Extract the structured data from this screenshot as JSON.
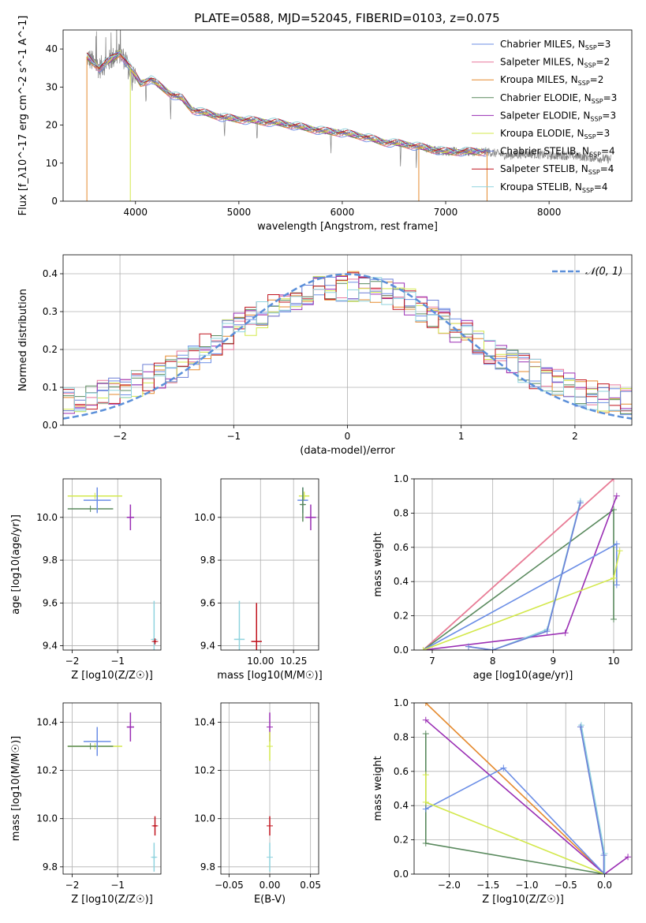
{
  "figure_title": "PLATE=0588, MJD=52045, FIBERID=0103, z=0.075",
  "colors": {
    "Chabrier MILES": "#6b8ee6",
    "Salpeter MILES": "#e8799e",
    "Kroupa MILES": "#e58a2e",
    "Chabrier ELODIE": "#5a8a5e",
    "Salpeter ELODIE": "#9a2eb4",
    "Kroupa ELODIE": "#d3e84c",
    "Chabrier STELIB": "#6b7ed6",
    "Salpeter STELIB": "#c0141e",
    "Kroupa STELIB": "#8fd3de",
    "data": "#808080",
    "normal": "#5b8fd9"
  },
  "chart_data": [
    {
      "id": "spectrum",
      "type": "line",
      "xlabel": "wavelength [Angstrom, rest frame]",
      "ylabel": "Flux [f_λ10^-17 erg cm^-2 s^-1 A^-1]",
      "xlim": [
        3300,
        8800
      ],
      "ylim": [
        0,
        45
      ],
      "xticks": [
        4000,
        5000,
        6000,
        7000,
        8000
      ],
      "yticks": [
        0,
        10,
        20,
        30,
        40
      ],
      "grid": false,
      "legend_position": "upper right",
      "legend": [
        {
          "name": "Chabrier MILES",
          "nssp": "3"
        },
        {
          "name": "Salpeter MILES",
          "nssp": "2"
        },
        {
          "name": "Kroupa MILES",
          "nssp": "2"
        },
        {
          "name": "Chabrier ELODIE",
          "nssp": "3"
        },
        {
          "name": "Salpeter ELODIE",
          "nssp": "3"
        },
        {
          "name": "Kroupa ELODIE",
          "nssp": "3"
        },
        {
          "name": "Chabrier STELIB",
          "nssp": "4"
        },
        {
          "name": "Salpeter STELIB",
          "nssp": "4"
        },
        {
          "name": "Kroupa STELIB",
          "nssp": "4"
        }
      ],
      "data_continuum": [
        [
          3530,
          38
        ],
        [
          3650,
          35
        ],
        [
          3750,
          37
        ],
        [
          3850,
          39
        ],
        [
          3950,
          35
        ],
        [
          4050,
          31
        ],
        [
          4150,
          32
        ],
        [
          4250,
          30
        ],
        [
          4350,
          28
        ],
        [
          4450,
          27
        ],
        [
          4550,
          24
        ],
        [
          4700,
          23
        ],
        [
          4850,
          22
        ],
        [
          5000,
          21.5
        ],
        [
          5200,
          21
        ],
        [
          5400,
          20.5
        ],
        [
          5600,
          19.5
        ],
        [
          5800,
          18.5
        ],
        [
          6000,
          18
        ],
        [
          6200,
          17
        ],
        [
          6400,
          15.5
        ],
        [
          6600,
          15
        ],
        [
          6800,
          14
        ],
        [
          7000,
          13
        ],
        [
          7200,
          13
        ],
        [
          7400,
          13
        ],
        [
          7600,
          12
        ],
        [
          7800,
          12.5
        ],
        [
          8000,
          12
        ],
        [
          8200,
          12
        ],
        [
          8400,
          11.5
        ],
        [
          8600,
          11
        ]
      ],
      "model_range": [
        3530,
        7400
      ]
    },
    {
      "id": "residuals",
      "type": "histogram",
      "xlabel": "(data-model)/error",
      "ylabel": "Normed distribution",
      "xlim": [
        -2.5,
        2.5
      ],
      "ylim": [
        0,
        0.45
      ],
      "xticks": [
        -2,
        -1,
        0,
        1,
        2
      ],
      "yticks": [
        0.0,
        0.1,
        0.2,
        0.3,
        0.4
      ],
      "grid": true,
      "legend_position": "upper right",
      "normal_label": "𝒩(0, 1)",
      "bin_width": 0.1
    },
    {
      "id": "age_vs_Z",
      "type": "scatter",
      "xlabel": "Z [log10(Z/Z☉)]",
      "ylabel": "age [log10(age/yr)]",
      "xlim": [
        -2.2,
        -0.05
      ],
      "ylim": [
        9.38,
        10.18
      ],
      "xticks": [
        -2,
        -1
      ],
      "yticks": [
        9.4,
        9.6,
        9.8,
        10.0
      ],
      "grid": true,
      "points": [
        {
          "model": "Kroupa ELODIE",
          "x": -1.5,
          "y": 10.1,
          "xerr": 0.6,
          "yerr": 0
        },
        {
          "model": "Chabrier ELODIE",
          "x": -1.6,
          "y": 10.04,
          "xerr": 0.5,
          "yerr": 0
        },
        {
          "model": "Chabrier MILES",
          "x": -1.45,
          "y": 10.08,
          "xerr": 0.3,
          "yerr": 0.06
        },
        {
          "model": "Salpeter ELODIE",
          "x": -0.72,
          "y": 10.0,
          "xerr": 0.08,
          "yerr": 0.06
        },
        {
          "model": "Kroupa STELIB",
          "x": -0.2,
          "y": 9.43,
          "xerr": 0.03,
          "yerr": 0.18
        },
        {
          "model": "Salpeter STELIB",
          "x": -0.18,
          "y": 9.42,
          "xerr": 0.03,
          "yerr": 0.01
        }
      ]
    },
    {
      "id": "age_vs_mass",
      "type": "scatter",
      "xlabel": "mass [log10(M/M☉)]",
      "ylabel": "",
      "xlim": [
        9.7,
        10.44
      ],
      "ylim": [
        9.38,
        10.18
      ],
      "xticks": [
        10.0,
        10.25
      ],
      "xticklabels": [
        "10.00",
        "10.25"
      ],
      "yticks": [
        9.4,
        9.6,
        9.8,
        10.0
      ],
      "grid": true,
      "points": [
        {
          "model": "Kroupa ELODIE",
          "x": 10.33,
          "y": 10.1,
          "xerr": 0.04,
          "yerr": 0.02
        },
        {
          "model": "Chabrier MILES",
          "x": 10.32,
          "y": 10.08,
          "xerr": 0.04,
          "yerr": 0.06
        },
        {
          "model": "Chabrier ELODIE",
          "x": 10.32,
          "y": 10.06,
          "xerr": 0.02,
          "yerr": 0.08
        },
        {
          "model": "Salpeter ELODIE",
          "x": 10.38,
          "y": 10.0,
          "xerr": 0.04,
          "yerr": 0.06
        },
        {
          "model": "Kroupa STELIB",
          "x": 9.84,
          "y": 9.43,
          "xerr": 0.04,
          "yerr": 0.18
        },
        {
          "model": "Salpeter STELIB",
          "x": 9.97,
          "y": 9.42,
          "xerr": 0.04,
          "yerr": 0.18
        }
      ]
    },
    {
      "id": "massweight_vs_age",
      "type": "line",
      "xlabel": "age [log10(age/yr)]",
      "ylabel": "mass weight",
      "xlim": [
        6.7,
        10.3
      ],
      "ylim": [
        0,
        1.0
      ],
      "xticks": [
        7,
        8,
        9,
        10
      ],
      "yticks": [
        0.0,
        0.2,
        0.4,
        0.6,
        0.8,
        1.0
      ],
      "grid": true,
      "series": [
        {
          "model": "Kroupa MILES",
          "points": [
            [
              6.85,
              0
            ],
            [
              10.0,
              1.0
            ]
          ]
        },
        {
          "model": "Salpeter MILES",
          "points": [
            [
              6.85,
              0
            ],
            [
              10.0,
              1.0
            ]
          ]
        },
        {
          "model": "Chabrier ELODIE",
          "points": [
            [
              6.85,
              0
            ],
            [
              10.0,
              0.82
            ],
            [
              10.0,
              0.18
            ]
          ]
        },
        {
          "model": "Salpeter ELODIE",
          "points": [
            [
              6.85,
              0
            ],
            [
              9.2,
              0.1
            ],
            [
              10.05,
              0.9
            ]
          ]
        },
        {
          "model": "Chabrier MILES",
          "points": [
            [
              6.85,
              0
            ],
            [
              10.05,
              0.62
            ],
            [
              10.05,
              0.38
            ]
          ]
        },
        {
          "model": "Kroupa ELODIE",
          "points": [
            [
              6.85,
              0
            ],
            [
              10.0,
              0.42
            ],
            [
              10.1,
              0.58
            ]
          ]
        },
        {
          "model": "Kroupa STELIB",
          "points": [
            [
              7.6,
              0.02
            ],
            [
              8.0,
              0
            ],
            [
              8.9,
              0.12
            ],
            [
              9.45,
              0.87
            ]
          ]
        },
        {
          "model": "Chabrier STELIB",
          "points": [
            [
              7.6,
              0.02
            ],
            [
              8.0,
              0
            ],
            [
              8.9,
              0.11
            ],
            [
              9.45,
              0.86
            ]
          ]
        }
      ]
    },
    {
      "id": "mass_vs_Z",
      "type": "scatter",
      "xlabel": "Z [log10(Z/Z☉)]",
      "ylabel": "mass [log10(M/M☉)]",
      "xlim": [
        -2.2,
        -0.05
      ],
      "ylim": [
        9.77,
        10.48
      ],
      "xticks": [
        -2,
        -1
      ],
      "yticks": [
        9.8,
        10.0,
        10.2,
        10.4
      ],
      "grid": true,
      "points": [
        {
          "model": "Kroupa ELODIE",
          "x": -1.5,
          "y": 10.3,
          "xerr": 0.6,
          "yerr": 0
        },
        {
          "model": "Chabrier ELODIE",
          "x": -1.6,
          "y": 10.3,
          "xerr": 0.5,
          "yerr": 0
        },
        {
          "model": "Chabrier MILES",
          "x": -1.45,
          "y": 10.32,
          "xerr": 0.3,
          "yerr": 0.06
        },
        {
          "model": "Salpeter ELODIE",
          "x": -0.72,
          "y": 10.38,
          "xerr": 0.08,
          "yerr": 0.06
        },
        {
          "model": "Salpeter STELIB",
          "x": -0.18,
          "y": 9.97,
          "xerr": 0.04,
          "yerr": 0.04
        },
        {
          "model": "Kroupa STELIB",
          "x": -0.2,
          "y": 9.84,
          "xerr": 0.04,
          "yerr": 0.06
        }
      ]
    },
    {
      "id": "mass_vs_ebv",
      "type": "scatter",
      "xlabel": "E(B-V)",
      "ylabel": "",
      "xlim": [
        -0.06,
        0.06
      ],
      "ylim": [
        9.77,
        10.48
      ],
      "xticks": [
        -0.05,
        0.0,
        0.05
      ],
      "xticklabels": [
        "−0.05",
        "0.00",
        "0.05"
      ],
      "yticks": [
        9.8,
        10.0,
        10.2,
        10.4
      ],
      "grid": true,
      "points": [
        {
          "model": "Salpeter ELODIE",
          "x": 0,
          "y": 10.38,
          "xerr": 0,
          "yerr": 0.06
        },
        {
          "model": "Kroupa ELODIE",
          "x": 0,
          "y": 10.3,
          "xerr": 0,
          "yerr": 0.06
        },
        {
          "model": "Salpeter STELIB",
          "x": 0,
          "y": 9.97,
          "xerr": 0,
          "yerr": 0.04
        },
        {
          "model": "Kroupa STELIB",
          "x": 0,
          "y": 9.84,
          "xerr": 0,
          "yerr": 0.06
        }
      ]
    },
    {
      "id": "massweight_vs_Z",
      "type": "line",
      "xlabel": "Z [log10(Z/Z☉)]",
      "ylabel": "mass weight",
      "xlim": [
        -2.45,
        0.35
      ],
      "ylim": [
        0,
        1.0
      ],
      "xticks": [
        -2.0,
        -1.5,
        -1.0,
        -0.5,
        0.0
      ],
      "xticklabels": [
        "−2.0",
        "−1.5",
        "−1.0",
        "−0.5",
        "0.0"
      ],
      "yticks": [
        0.0,
        0.2,
        0.4,
        0.6,
        0.8,
        1.0
      ],
      "grid": true,
      "series": [
        {
          "model": "Kroupa MILES",
          "points": [
            [
              -2.3,
              1.0
            ],
            [
              0.0,
              0
            ]
          ]
        },
        {
          "model": "Salpeter ELODIE",
          "points": [
            [
              -2.3,
              0.9
            ],
            [
              0.0,
              0
            ],
            [
              0.3,
              0.1
            ]
          ]
        },
        {
          "model": "Chabrier ELODIE",
          "points": [
            [
              -2.3,
              0.82
            ],
            [
              -2.3,
              0.18
            ],
            [
              0.0,
              0
            ]
          ]
        },
        {
          "model": "Chabrier MILES",
          "points": [
            [
              -2.3,
              0.38
            ],
            [
              -1.3,
              0.62
            ],
            [
              0.0,
              0
            ]
          ]
        },
        {
          "model": "Kroupa ELODIE",
          "points": [
            [
              -2.3,
              0.58
            ],
            [
              -2.3,
              0.42
            ],
            [
              0.0,
              0
            ]
          ]
        },
        {
          "model": "Kroupa STELIB",
          "points": [
            [
              -0.3,
              0.87
            ],
            [
              0.0,
              0.12
            ],
            [
              0.0,
              0
            ]
          ]
        },
        {
          "model": "Chabrier STELIB",
          "points": [
            [
              -0.31,
              0.86
            ],
            [
              -0.01,
              0.11
            ],
            [
              -0.01,
              0
            ]
          ]
        }
      ]
    }
  ]
}
